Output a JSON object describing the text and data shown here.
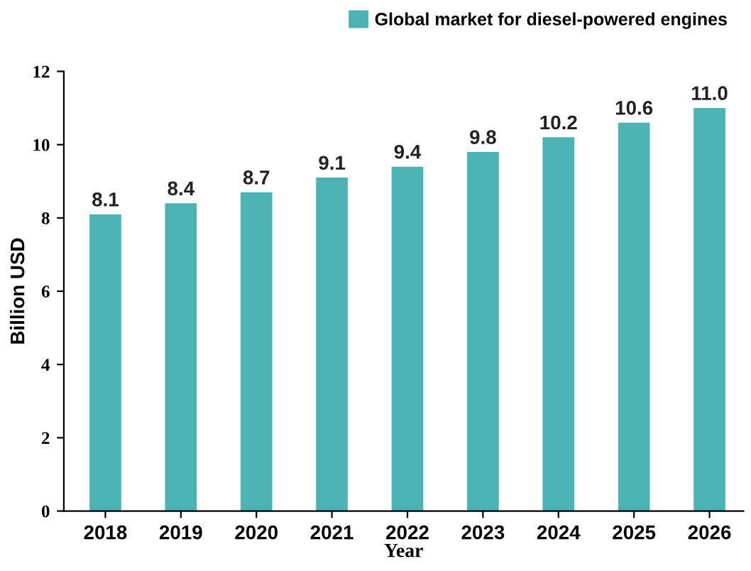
{
  "chart_data": {
    "type": "bar",
    "xlabel": "Year",
    "ylabel": "Billion USD",
    "categories": [
      "2018",
      "2019",
      "2020",
      "2021",
      "2022",
      "2023",
      "2024",
      "2025",
      "2026"
    ],
    "series": [
      {
        "name": "Global market for diesel-powered engines",
        "color": "#4bb3b4",
        "values": [
          8.1,
          8.4,
          8.7,
          9.1,
          9.4,
          9.8,
          10.2,
          10.6,
          11.0
        ]
      }
    ],
    "value_labels": [
      "8.1",
      "8.4",
      "8.7",
      "9.1",
      "9.4",
      "9.8",
      "10.2",
      "10.6",
      "11.0"
    ],
    "ylim": [
      0,
      12
    ],
    "yticks": [
      0,
      2,
      4,
      6,
      8,
      10,
      12
    ],
    "grid": false,
    "legend": "top right"
  }
}
